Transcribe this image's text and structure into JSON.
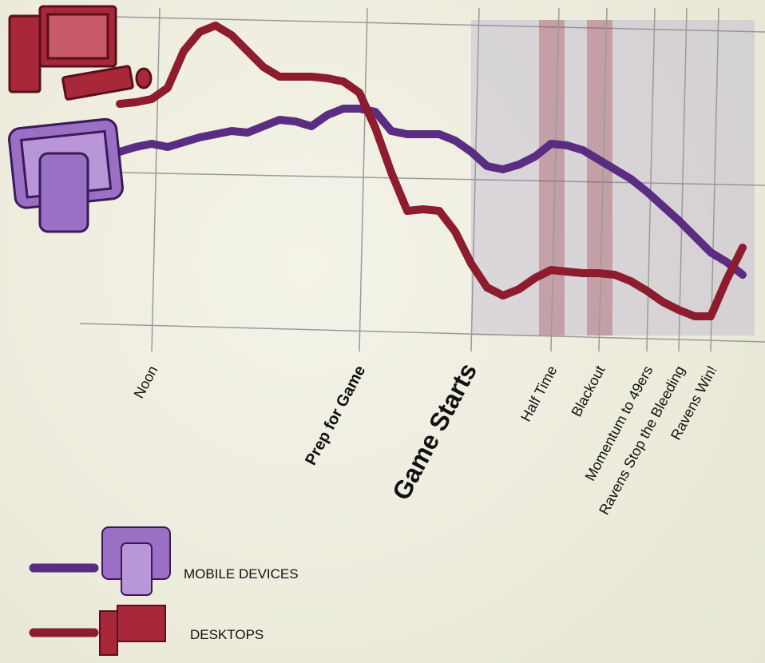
{
  "chart_data": {
    "type": "line",
    "categories": [
      null,
      null,
      "Noon",
      null,
      null,
      null,
      null,
      null,
      null,
      null,
      null,
      null,
      null,
      null,
      null,
      "Prep for Game",
      null,
      null,
      null,
      null,
      null,
      null,
      "Game Starts",
      null,
      null,
      null,
      null,
      "Half Time",
      null,
      null,
      "Blackout",
      null,
      null,
      "Momentum to 49ers",
      null,
      "Ravens Stop the Bleeding",
      null,
      "Ravens Win!",
      null,
      null
    ],
    "series": [
      {
        "name": "MOBILE DEVICES",
        "color": "#5a2d82",
        "values": [
          57.5,
          59,
          60,
          59,
          60.5,
          62,
          63,
          64,
          63.5,
          65.5,
          67.5,
          67,
          65.5,
          69,
          71,
          71,
          70,
          64,
          63,
          63,
          63,
          61,
          57.5,
          53,
          52,
          53.5,
          56,
          60,
          59.5,
          58,
          55,
          52,
          49,
          45,
          40.5,
          36,
          31,
          26,
          23,
          19
        ]
      },
      {
        "name": "DESKTOPS",
        "color": "#8c1c2e",
        "values": [
          72.5,
          73,
          74,
          77.5,
          89,
          95,
          97,
          94,
          89,
          84,
          81,
          81,
          81,
          80.5,
          79.5,
          76,
          65,
          51,
          39,
          39.5,
          39,
          32.5,
          22.5,
          15,
          12.5,
          14.5,
          18,
          20.5,
          20,
          19.5,
          19.5,
          19,
          17,
          14,
          10.5,
          8,
          6,
          6,
          17.5,
          27.5
        ]
      }
    ],
    "ylim": [
      0,
      100
    ]
  }
}
